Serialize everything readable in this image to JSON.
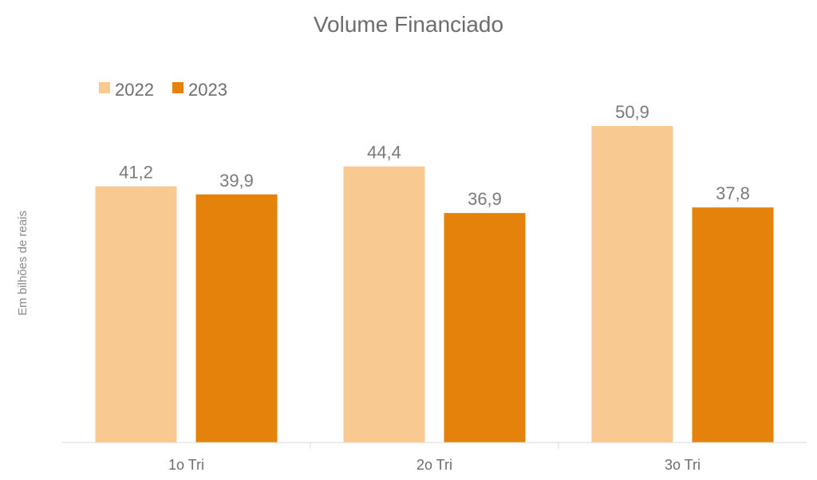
{
  "chart_data": {
    "type": "bar",
    "title": "Volume Financiado",
    "ylabel": "Em bilhões de reais",
    "xlabel": "",
    "categories": [
      "1o Tri",
      "2o Tri",
      "3o Tri"
    ],
    "series": [
      {
        "name": "2022",
        "values": [
          41.2,
          44.4,
          50.9
        ],
        "labels": [
          "41,2",
          "44,4",
          "50,9"
        ],
        "color": "#f8c991"
      },
      {
        "name": "2023",
        "values": [
          39.9,
          36.9,
          37.8
        ],
        "labels": [
          "39,9",
          "36,9",
          "37,8"
        ],
        "color": "#e5820c"
      }
    ],
    "ylim": [
      0,
      60
    ],
    "grid": false,
    "legend": "top-left"
  }
}
